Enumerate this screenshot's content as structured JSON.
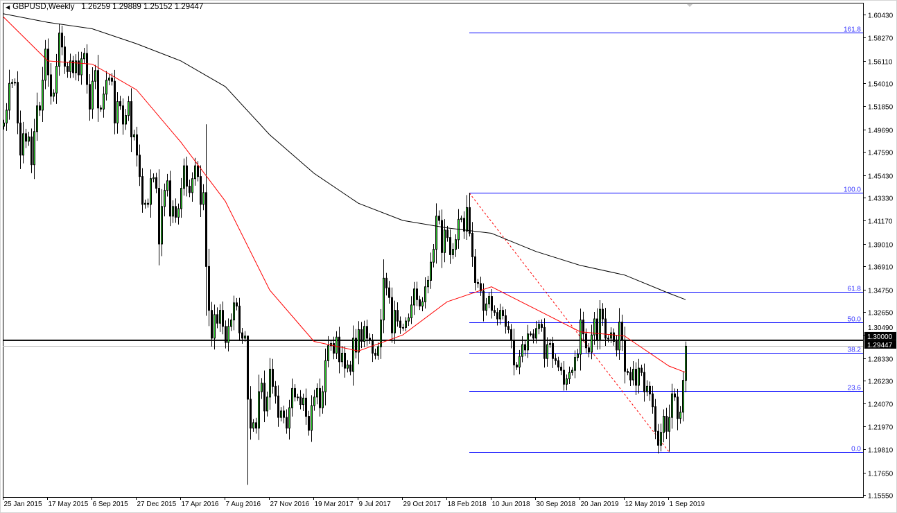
{
  "title": {
    "symbol_timeframe": "GBPUSD,Weekly",
    "ohlc": "1.26259 1.29889 1.25152 1.29447"
  },
  "chart_data": {
    "type": "candlestick",
    "symbol": "GBPUSD",
    "timeframe": "Weekly",
    "ylim": [
      1.1536,
      1.6153
    ],
    "grid": false,
    "colors": {
      "bull": "#2bd12b",
      "bear": "#000000",
      "ma_fast": "#ff0000",
      "ma_slow": "#000000",
      "fib": "#0000ff",
      "fib_label": "#3333ff",
      "trendline": "#ff0000",
      "level": "#000000",
      "bid": "#c0c0c0"
    },
    "y_ticks": [
      "1.60430",
      "1.58270",
      "1.56110",
      "1.54010",
      "1.51850",
      "1.49690",
      "1.47590",
      "1.45430",
      "1.43330",
      "1.41170",
      "1.39010",
      "1.36910",
      "1.34750",
      "1.32650",
      "1.30490",
      "1.28330",
      "1.26230",
      "1.24070",
      "1.21970",
      "1.19810",
      "1.17650",
      "1.15550"
    ],
    "x_ticks": [
      {
        "label": "25 Jan 2015",
        "date": "2015-01-25"
      },
      {
        "label": "17 May 2015",
        "date": "2015-05-17"
      },
      {
        "label": "6 Sep 2015",
        "date": "2015-09-06"
      },
      {
        "label": "27 Dec 2015",
        "date": "2015-12-27"
      },
      {
        "label": "17 Apr 2016",
        "date": "2016-04-17"
      },
      {
        "label": "7 Aug 2016",
        "date": "2016-08-07"
      },
      {
        "label": "27 Nov 2016",
        "date": "2016-11-27"
      },
      {
        "label": "19 Mar 2017",
        "date": "2017-03-19"
      },
      {
        "label": "9 Jul 2017",
        "date": "2017-07-09"
      },
      {
        "label": "29 Oct 2017",
        "date": "2017-10-29"
      },
      {
        "label": "18 Feb 2018",
        "date": "2018-02-18"
      },
      {
        "label": "10 Jun 2018",
        "date": "2018-06-10"
      },
      {
        "label": "30 Sep 2018",
        "date": "2018-09-30"
      },
      {
        "label": "20 Jan 2019",
        "date": "2019-01-20"
      },
      {
        "label": "12 May 2019",
        "date": "2019-05-12"
      },
      {
        "label": "1 Sep 2019",
        "date": "2019-09-01"
      }
    ],
    "weekly_closes": [
      1.503,
      1.515,
      1.54,
      1.541,
      1.541,
      1.503,
      1.473,
      1.493,
      1.486,
      1.49,
      1.464,
      1.495,
      1.519,
      1.515,
      1.543,
      1.572,
      1.548,
      1.528,
      1.531,
      1.556,
      1.587,
      1.574,
      1.556,
      1.551,
      1.561,
      1.55,
      1.561,
      1.548,
      1.563,
      1.568,
      1.539,
      1.516,
      1.542,
      1.552,
      1.517,
      1.516,
      1.53,
      1.543,
      1.545,
      1.542,
      1.503,
      1.523,
      1.519,
      1.502,
      1.51,
      1.523,
      1.49,
      1.492,
      1.473,
      1.453,
      1.427,
      1.428,
      1.427,
      1.451,
      1.452,
      1.442,
      1.39,
      1.425,
      1.44,
      1.449,
      1.416,
      1.425,
      1.415,
      1.423,
      1.442,
      1.463,
      1.444,
      1.438,
      1.451,
      1.463,
      1.453,
      1.427,
      1.438,
      1.369,
      1.328,
      1.302,
      1.324,
      1.316,
      1.328,
      1.313,
      1.298,
      1.313,
      1.319,
      1.335,
      1.332,
      1.307,
      1.302,
      1.304,
      1.245,
      1.218,
      1.223,
      1.218,
      1.252,
      1.26,
      1.234,
      1.247,
      1.273,
      1.257,
      1.248,
      1.228,
      1.234,
      1.228,
      1.218,
      1.237,
      1.255,
      1.247,
      1.247,
      1.24,
      1.246,
      1.229,
      1.216,
      1.239,
      1.247,
      1.255,
      1.237,
      1.252,
      1.281,
      1.295,
      1.297,
      1.288,
      1.303,
      1.28,
      1.288,
      1.274,
      1.277,
      1.271,
      1.302,
      1.289,
      1.31,
      1.299,
      1.313,
      1.302,
      1.3,
      1.288,
      1.286,
      1.294,
      1.319,
      1.358,
      1.349,
      1.34,
      1.307,
      1.328,
      1.318,
      1.312,
      1.312,
      1.318,
      1.321,
      1.333,
      1.348,
      1.338,
      1.332,
      1.336,
      1.35,
      1.356,
      1.373,
      1.385,
      1.416,
      1.412,
      1.382,
      1.403,
      1.396,
      1.38,
      1.385,
      1.394,
      1.413,
      1.414,
      1.402,
      1.424,
      1.4,
      1.378,
      1.354,
      1.353,
      1.346,
      1.328,
      1.334,
      1.341,
      1.328,
      1.326,
      1.32,
      1.328,
      1.323,
      1.313,
      1.31,
      1.3,
      1.277,
      1.275,
      1.285,
      1.296,
      1.291,
      1.306,
      1.306,
      1.302,
      1.311,
      1.315,
      1.312,
      1.283,
      1.296,
      1.297,
      1.283,
      1.281,
      1.275,
      1.272,
      1.259,
      1.264,
      1.27,
      1.272,
      1.284,
      1.287,
      1.319,
      1.306,
      1.293,
      1.289,
      1.305,
      1.32,
      1.3,
      1.329,
      1.32,
      1.302,
      1.302,
      1.307,
      1.299,
      1.291,
      1.317,
      1.3,
      1.271,
      1.27,
      1.263,
      1.273,
      1.258,
      1.274,
      1.27,
      1.252,
      1.257,
      1.25,
      1.238,
      1.215,
      1.202,
      1.214,
      1.229,
      1.215,
      1.228,
      1.25,
      1.247,
      1.227,
      1.233,
      1.2626,
      1.29447
    ],
    "wick_extremes": [
      {
        "week": "2016-06-19",
        "high": 1.5018,
        "low": 1.3229
      },
      {
        "week": "2016-10-02",
        "high": 1.287,
        "low": 1.165
      },
      {
        "week": "2018-04-15",
        "high": 1.4377,
        "low": 1.397
      },
      {
        "week": "2019-09-01",
        "high": 1.24,
        "low": 1.1959
      }
    ],
    "last_bar": {
      "week": "2019-10-13",
      "open": 1.26259,
      "high": 1.29889,
      "low": 1.25152,
      "close": 1.29447
    },
    "ma_fast": [
      {
        "date": "2015-01-25",
        "value": 1.602
      },
      {
        "date": "2015-05-17",
        "value": 1.561
      },
      {
        "date": "2015-09-06",
        "value": 1.558
      },
      {
        "date": "2015-12-27",
        "value": 1.534
      },
      {
        "date": "2016-04-17",
        "value": 1.485
      },
      {
        "date": "2016-08-07",
        "value": 1.43
      },
      {
        "date": "2016-11-27",
        "value": 1.347
      },
      {
        "date": "2017-03-19",
        "value": 1.299
      },
      {
        "date": "2017-07-09",
        "value": 1.29
      },
      {
        "date": "2017-10-29",
        "value": 1.305
      },
      {
        "date": "2018-02-18",
        "value": 1.336
      },
      {
        "date": "2018-06-10",
        "value": 1.35
      },
      {
        "date": "2018-09-30",
        "value": 1.329
      },
      {
        "date": "2019-01-20",
        "value": 1.308
      },
      {
        "date": "2019-05-12",
        "value": 1.304
      },
      {
        "date": "2019-09-01",
        "value": 1.276
      },
      {
        "date": "2019-10-13",
        "value": 1.27
      }
    ],
    "ma_slow": [
      {
        "date": "2015-01-25",
        "value": 1.605
      },
      {
        "date": "2015-05-17",
        "value": 1.597
      },
      {
        "date": "2015-09-06",
        "value": 1.591
      },
      {
        "date": "2015-12-27",
        "value": 1.577
      },
      {
        "date": "2016-04-17",
        "value": 1.561
      },
      {
        "date": "2016-08-07",
        "value": 1.537
      },
      {
        "date": "2016-11-27",
        "value": 1.492
      },
      {
        "date": "2017-03-19",
        "value": 1.456
      },
      {
        "date": "2017-07-09",
        "value": 1.428
      },
      {
        "date": "2017-10-29",
        "value": 1.412
      },
      {
        "date": "2018-02-18",
        "value": 1.405
      },
      {
        "date": "2018-06-10",
        "value": 1.4
      },
      {
        "date": "2018-09-30",
        "value": 1.383
      },
      {
        "date": "2019-01-20",
        "value": 1.37
      },
      {
        "date": "2019-05-12",
        "value": 1.361
      },
      {
        "date": "2019-09-01",
        "value": 1.344
      },
      {
        "date": "2019-10-13",
        "value": 1.338
      }
    ],
    "fibonacci": {
      "from": {
        "date": "2018-04-15",
        "price": 1.4377
      },
      "to": {
        "date": "2019-09-01",
        "price": 1.1959
      },
      "levels": [
        {
          "label": "161.8",
          "ratio": 1.618
        },
        {
          "label": "100.0",
          "ratio": 1.0
        },
        {
          "label": "61.8",
          "ratio": 0.618
        },
        {
          "label": "50.0",
          "ratio": 0.5
        },
        {
          "label": "38.2",
          "ratio": 0.382
        },
        {
          "label": "23.6",
          "ratio": 0.236
        },
        {
          "label": "0.0",
          "ratio": 0.0
        }
      ]
    },
    "horizontal_level": {
      "price": 1.3,
      "label": "1.30000"
    },
    "bid_line": {
      "price": 1.29447,
      "label": "1.29447"
    }
  }
}
